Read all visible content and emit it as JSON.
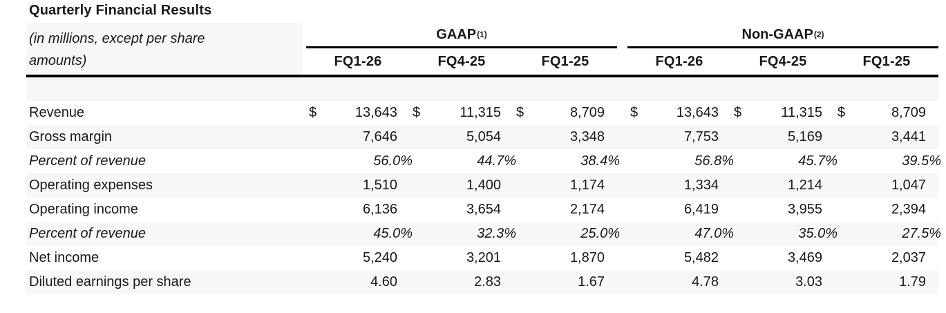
{
  "title": "Quarterly Financial Results",
  "subtitle_line1": "(in millions, except per share",
  "subtitle_line2": "amounts)",
  "currency_symbol": "$",
  "groups": [
    {
      "name": "GAAP",
      "superscript": "(1)",
      "columns": [
        "FQ1-26",
        "FQ4-25",
        "FQ1-25"
      ]
    },
    {
      "name": "Non-GAAP",
      "superscript": "(2)",
      "columns": [
        "FQ1-26",
        "FQ4-25",
        "FQ1-25"
      ]
    }
  ],
  "rows": [
    {
      "label": "Revenue",
      "italic": false,
      "percent": false,
      "dollar": true,
      "gaap": [
        "13,643",
        "11,315",
        "8,709"
      ],
      "non_gaap": [
        "13,643",
        "11,315",
        "8,709"
      ]
    },
    {
      "label": "Gross margin",
      "italic": false,
      "percent": false,
      "dollar": false,
      "gaap": [
        "7,646",
        "5,054",
        "3,348"
      ],
      "non_gaap": [
        "7,753",
        "5,169",
        "3,441"
      ]
    },
    {
      "label": "Percent of revenue",
      "italic": true,
      "percent": true,
      "dollar": false,
      "gaap": [
        "56.0%",
        "44.7%",
        "38.4%"
      ],
      "non_gaap": [
        "56.8%",
        "45.7%",
        "39.5%"
      ]
    },
    {
      "label": "Operating expenses",
      "italic": false,
      "percent": false,
      "dollar": false,
      "gaap": [
        "1,510",
        "1,400",
        "1,174"
      ],
      "non_gaap": [
        "1,334",
        "1,214",
        "1,047"
      ]
    },
    {
      "label": "Operating income",
      "italic": false,
      "percent": false,
      "dollar": false,
      "gaap": [
        "6,136",
        "3,654",
        "2,174"
      ],
      "non_gaap": [
        "6,419",
        "3,955",
        "2,394"
      ]
    },
    {
      "label": "Percent of revenue",
      "italic": true,
      "percent": true,
      "dollar": false,
      "gaap": [
        "45.0%",
        "32.3%",
        "25.0%"
      ],
      "non_gaap": [
        "47.0%",
        "35.0%",
        "27.5%"
      ]
    },
    {
      "label": "Net income",
      "italic": false,
      "percent": false,
      "dollar": false,
      "gaap": [
        "5,240",
        "3,201",
        "1,870"
      ],
      "non_gaap": [
        "5,482",
        "3,469",
        "2,037"
      ]
    },
    {
      "label": "Diluted earnings per share",
      "italic": false,
      "percent": false,
      "dollar": false,
      "gaap": [
        "4.60",
        "2.83",
        "1.67"
      ],
      "non_gaap": [
        "4.78",
        "3.03",
        "1.79"
      ]
    }
  ],
  "colors": {
    "background": "#ffffff",
    "stripe": "#f7f7f7",
    "text": "#191919",
    "rule": "#000000"
  }
}
